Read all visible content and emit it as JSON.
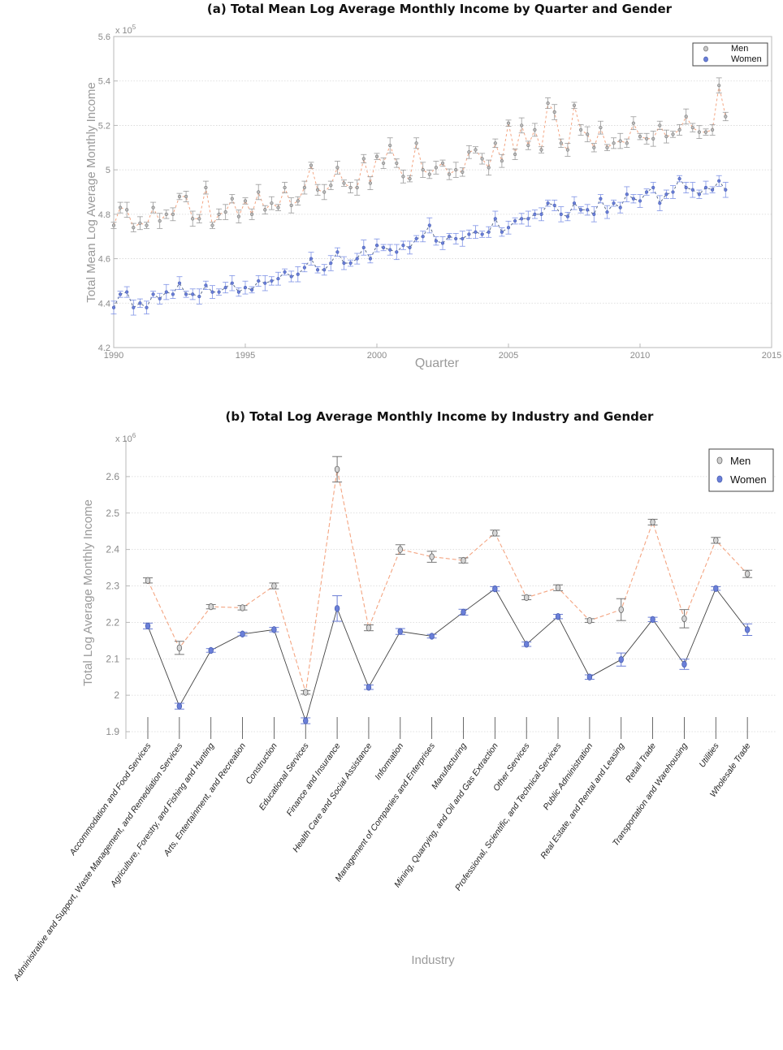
{
  "chart_data": [
    {
      "type": "scatter",
      "title": "(a) Total Mean Log Average Monthly Income by Quarter and Gender",
      "xlabel": "Quarter",
      "ylabel": "Total Mean Log Average Monthly Income",
      "y_multiplier_label": "x 10",
      "y_multiplier_exp": "5",
      "xlim": [
        1990,
        2015
      ],
      "ylim": [
        4.2,
        5.6
      ],
      "xticks": [
        "1990",
        "1995",
        "2000",
        "2005",
        "2010",
        "2015"
      ],
      "yticks": [
        "4.2",
        "4.4",
        "4.6",
        "4.8",
        "5",
        "5.2",
        "5.4",
        "5.6"
      ],
      "grid": true,
      "legend_position": "top-right",
      "error_bars": true,
      "series": [
        {
          "name": "Men",
          "color": "#f4a582",
          "marker_color": "#a0a0a0",
          "line_style": "dashed",
          "x_start": 1990.0,
          "x_step": 0.25,
          "values": [
            4.75,
            4.83,
            4.82,
            4.74,
            4.76,
            4.75,
            4.83,
            4.77,
            4.8,
            4.8,
            4.88,
            4.88,
            4.78,
            4.78,
            4.92,
            4.75,
            4.8,
            4.81,
            4.87,
            4.79,
            4.86,
            4.8,
            4.9,
            4.82,
            4.85,
            4.83,
            4.92,
            4.84,
            4.86,
            4.92,
            5.02,
            4.91,
            4.9,
            4.93,
            5.01,
            4.94,
            4.92,
            4.92,
            5.05,
            4.94,
            5.06,
            5.03,
            5.11,
            5.03,
            4.97,
            4.96,
            5.12,
            5.0,
            4.98,
            5.01,
            5.03,
            4.98,
            5.0,
            4.99,
            5.08,
            5.09,
            5.05,
            5.01,
            5.12,
            5.04,
            5.21,
            5.07,
            5.2,
            5.11,
            5.18,
            5.09,
            5.3,
            5.26,
            5.12,
            5.09,
            5.29,
            5.18,
            5.16,
            5.1,
            5.19,
            5.1,
            5.12,
            5.13,
            5.12,
            5.21,
            5.15,
            5.14,
            5.14,
            5.2,
            5.15,
            5.16,
            5.18,
            5.24,
            5.19,
            5.17,
            5.17,
            5.18,
            5.38,
            5.24
          ]
        },
        {
          "name": "Women",
          "color": "#5a6b8c",
          "marker_color": "#6a7fd9",
          "line_style": "dashed",
          "x_start": 1990.0,
          "x_step": 0.25,
          "values": [
            4.38,
            4.44,
            4.45,
            4.38,
            4.4,
            4.38,
            4.44,
            4.42,
            4.45,
            4.44,
            4.49,
            4.44,
            4.44,
            4.43,
            4.48,
            4.45,
            4.45,
            4.47,
            4.49,
            4.45,
            4.47,
            4.46,
            4.5,
            4.49,
            4.5,
            4.51,
            4.54,
            4.52,
            4.53,
            4.56,
            4.6,
            4.55,
            4.55,
            4.58,
            4.63,
            4.58,
            4.58,
            4.6,
            4.65,
            4.6,
            4.66,
            4.65,
            4.64,
            4.63,
            4.66,
            4.65,
            4.69,
            4.7,
            4.75,
            4.68,
            4.67,
            4.7,
            4.69,
            4.69,
            4.71,
            4.72,
            4.71,
            4.72,
            4.78,
            4.72,
            4.74,
            4.77,
            4.78,
            4.78,
            4.8,
            4.8,
            4.85,
            4.84,
            4.8,
            4.79,
            4.85,
            4.82,
            4.82,
            4.8,
            4.87,
            4.81,
            4.85,
            4.83,
            4.89,
            4.87,
            4.86,
            4.9,
            4.92,
            4.85,
            4.89,
            4.9,
            4.96,
            4.92,
            4.91,
            4.89,
            4.92,
            4.91,
            4.95,
            4.91
          ]
        }
      ]
    },
    {
      "type": "line",
      "title": "(b) Total Log Average Monthly Income by Industry and Gender",
      "xlabel": "Industry",
      "ylabel": "Total Log Average Monthly Income",
      "y_multiplier_label": "x 10",
      "y_multiplier_exp": "6",
      "ylim": [
        1.9,
        2.7
      ],
      "yticks": [
        "1.9",
        "2",
        "2.1",
        "2.2",
        "2.3",
        "2.4",
        "2.5",
        "2.6"
      ],
      "grid": true,
      "legend_position": "top-right",
      "error_bars": true,
      "categories": [
        "Accommodation and Food Services",
        "Administrative and Support, Waste Management, and Remediation Services",
        "Agriculture, Forestry, and Fishing and Hunting",
        "Arts, Entertainment, and Recreation",
        "Construction",
        "Educational Services",
        "Finance and Insurance",
        "Health Care and Social Assistance",
        "Information",
        "Management of Companies and Enterprises",
        "Manufacturing",
        "Mining, Quarrying, and Oil and Gas Extraction",
        "Other Services",
        "Professional, Scientific, and Technical Services",
        "Public Administration",
        "Real Estate, and Rental and Leasing",
        "Retail Trade",
        "Transportation and Warehousing",
        "Utilities",
        "Wholesale Trade"
      ],
      "series": [
        {
          "name": "Men",
          "color": "#f4a582",
          "marker_color": "#a0a0a0",
          "line_style": "dashed",
          "values": [
            2.315,
            2.13,
            2.243,
            2.24,
            2.3,
            2.008,
            2.62,
            2.185,
            2.4,
            2.38,
            2.37,
            2.445,
            2.268,
            2.295,
            2.205,
            2.235,
            2.475,
            2.21,
            2.425,
            2.333
          ],
          "errors": [
            0.007,
            0.018,
            0.006,
            0.006,
            0.008,
            0.005,
            0.035,
            0.008,
            0.013,
            0.015,
            0.007,
            0.008,
            0.006,
            0.008,
            0.005,
            0.03,
            0.008,
            0.025,
            0.008,
            0.01
          ]
        },
        {
          "name": "Women",
          "color": "#444444",
          "marker_color": "#6a7fd9",
          "line_style": "solid",
          "values": [
            2.19,
            1.97,
            2.123,
            2.168,
            2.18,
            1.93,
            2.238,
            2.022,
            2.175,
            2.162,
            2.228,
            2.292,
            2.14,
            2.216,
            2.05,
            2.098,
            2.208,
            2.085,
            2.293,
            2.18
          ],
          "errors": [
            0.008,
            0.008,
            0.005,
            0.005,
            0.006,
            0.008,
            0.035,
            0.006,
            0.008,
            0.005,
            0.008,
            0.006,
            0.006,
            0.006,
            0.006,
            0.018,
            0.006,
            0.014,
            0.005,
            0.016
          ]
        }
      ]
    }
  ]
}
